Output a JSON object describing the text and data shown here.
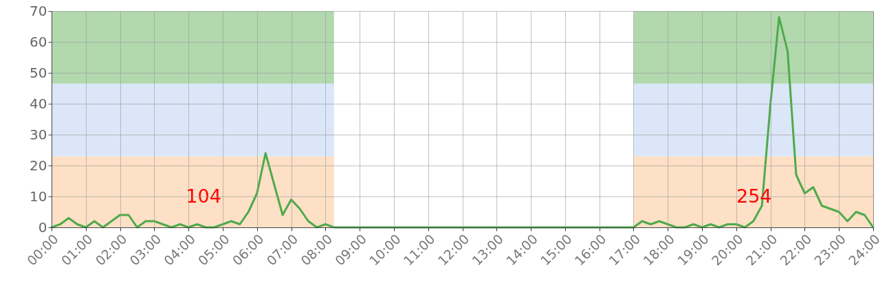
{
  "chart_data": {
    "type": "line",
    "x": [
      0,
      0.25,
      0.5,
      0.75,
      1,
      1.25,
      1.5,
      1.75,
      2,
      2.25,
      2.5,
      2.75,
      3,
      3.25,
      3.5,
      3.75,
      4,
      4.25,
      4.5,
      4.75,
      5,
      5.25,
      5.5,
      5.75,
      6,
      6.25,
      6.5,
      6.75,
      7,
      7.25,
      7.5,
      7.75,
      8,
      8.25,
      8.5,
      8.75,
      9,
      9.25,
      9.5,
      9.75,
      10,
      10.25,
      10.5,
      10.75,
      11,
      11.25,
      11.5,
      11.75,
      12,
      12.25,
      12.5,
      12.75,
      13,
      13.25,
      13.5,
      13.75,
      14,
      14.25,
      14.5,
      14.75,
      15,
      15.25,
      15.5,
      15.75,
      16,
      16.25,
      16.5,
      16.75,
      17,
      17.25,
      17.5,
      17.75,
      18,
      18.25,
      18.5,
      18.75,
      19,
      19.25,
      19.5,
      19.75,
      20,
      20.25,
      20.5,
      20.75,
      21,
      21.25,
      21.5,
      21.75,
      22,
      22.25,
      22.5,
      22.75,
      23,
      23.25,
      23.5,
      23.75,
      24
    ],
    "series": [
      {
        "color": "#4caa4a",
        "values": [
          0,
          1,
          3,
          1,
          0,
          2,
          0,
          2,
          4,
          4,
          0,
          2,
          2,
          1,
          0,
          1,
          0,
          1,
          0,
          0,
          1,
          2,
          1,
          5,
          11,
          24,
          14,
          4,
          9,
          6,
          2,
          0,
          1,
          0,
          0,
          0,
          0,
          0,
          0,
          0,
          0,
          0,
          0,
          0,
          0,
          0,
          0,
          0,
          0,
          0,
          0,
          0,
          0,
          0,
          0,
          0,
          0,
          0,
          0,
          0,
          0,
          0,
          0,
          0,
          0,
          0,
          0,
          0,
          0,
          2,
          1,
          2,
          1,
          0,
          0,
          1,
          0,
          1,
          0,
          1,
          1,
          0,
          2,
          7,
          40,
          68,
          57,
          17,
          11,
          13,
          7,
          6,
          5,
          2,
          5,
          4,
          0
        ]
      }
    ],
    "xlim": [
      0,
      24
    ],
    "xticks": [
      {
        "value": 0,
        "label": "00:00"
      },
      {
        "value": 1,
        "label": "01:00"
      },
      {
        "value": 2,
        "label": "02:00"
      },
      {
        "value": 3,
        "label": "03:00"
      },
      {
        "value": 4,
        "label": "04:00"
      },
      {
        "value": 5,
        "label": "05:00"
      },
      {
        "value": 6,
        "label": "06:00"
      },
      {
        "value": 7,
        "label": "07:00"
      },
      {
        "value": 8,
        "label": "08:00"
      },
      {
        "value": 9,
        "label": "09:00"
      },
      {
        "value": 10,
        "label": "10:00"
      },
      {
        "value": 11,
        "label": "11:00"
      },
      {
        "value": 12,
        "label": "12:00"
      },
      {
        "value": 13,
        "label": "13:00"
      },
      {
        "value": 14,
        "label": "14:00"
      },
      {
        "value": 15,
        "label": "15:00"
      },
      {
        "value": 16,
        "label": "16:00"
      },
      {
        "value": 17,
        "label": "17:00"
      },
      {
        "value": 18,
        "label": "18:00"
      },
      {
        "value": 19,
        "label": "19:00"
      },
      {
        "value": 20,
        "label": "20:00"
      },
      {
        "value": 21,
        "label": "21:00"
      },
      {
        "value": 22,
        "label": "22:00"
      },
      {
        "value": 23,
        "label": "23:00"
      },
      {
        "value": 24,
        "label": "24:00"
      }
    ],
    "ylim": [
      0,
      70
    ],
    "yticks": [
      0,
      10,
      20,
      30,
      40,
      50,
      60,
      70
    ],
    "grid": true,
    "marker": "none",
    "line_style": "solid",
    "bands": [
      {
        "axis": "y",
        "from": 0,
        "to": 23,
        "color": "#fde0c5"
      },
      {
        "axis": "y",
        "from": 23,
        "to": 46.5,
        "color": "#dbe6f8"
      },
      {
        "axis": "y",
        "from": 46.5,
        "to": 70,
        "color": "#b2d8ae"
      },
      {
        "axis": "x",
        "from": 8.25,
        "to": 17,
        "color": "#ffffff"
      }
    ],
    "annotations": [
      "104",
      "254"
    ]
  }
}
